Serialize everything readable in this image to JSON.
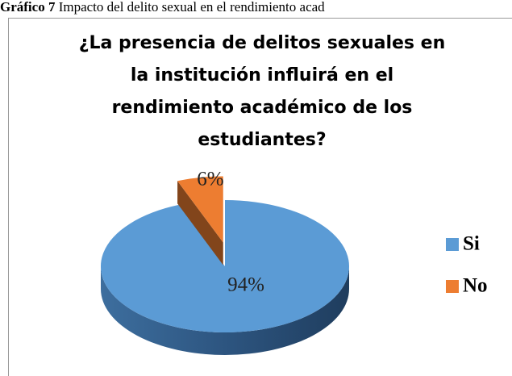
{
  "caption": {
    "label": "Gráfico 7",
    "text": "Impacto del delito sexual en el rendimiento acad"
  },
  "chart_data": {
    "type": "pie",
    "title": [
      "¿La presencia de  delitos sexuales en",
      "la institución influirá en el",
      "rendimiento académico de los",
      "estudiantes?"
    ],
    "categories": [
      "Si",
      "No"
    ],
    "values": [
      94,
      6
    ],
    "value_labels": [
      "94%",
      "6%"
    ],
    "colors": [
      "#5b9bd5",
      "#ed7d31"
    ],
    "legend": "right",
    "explode": [
      false,
      true
    ]
  }
}
